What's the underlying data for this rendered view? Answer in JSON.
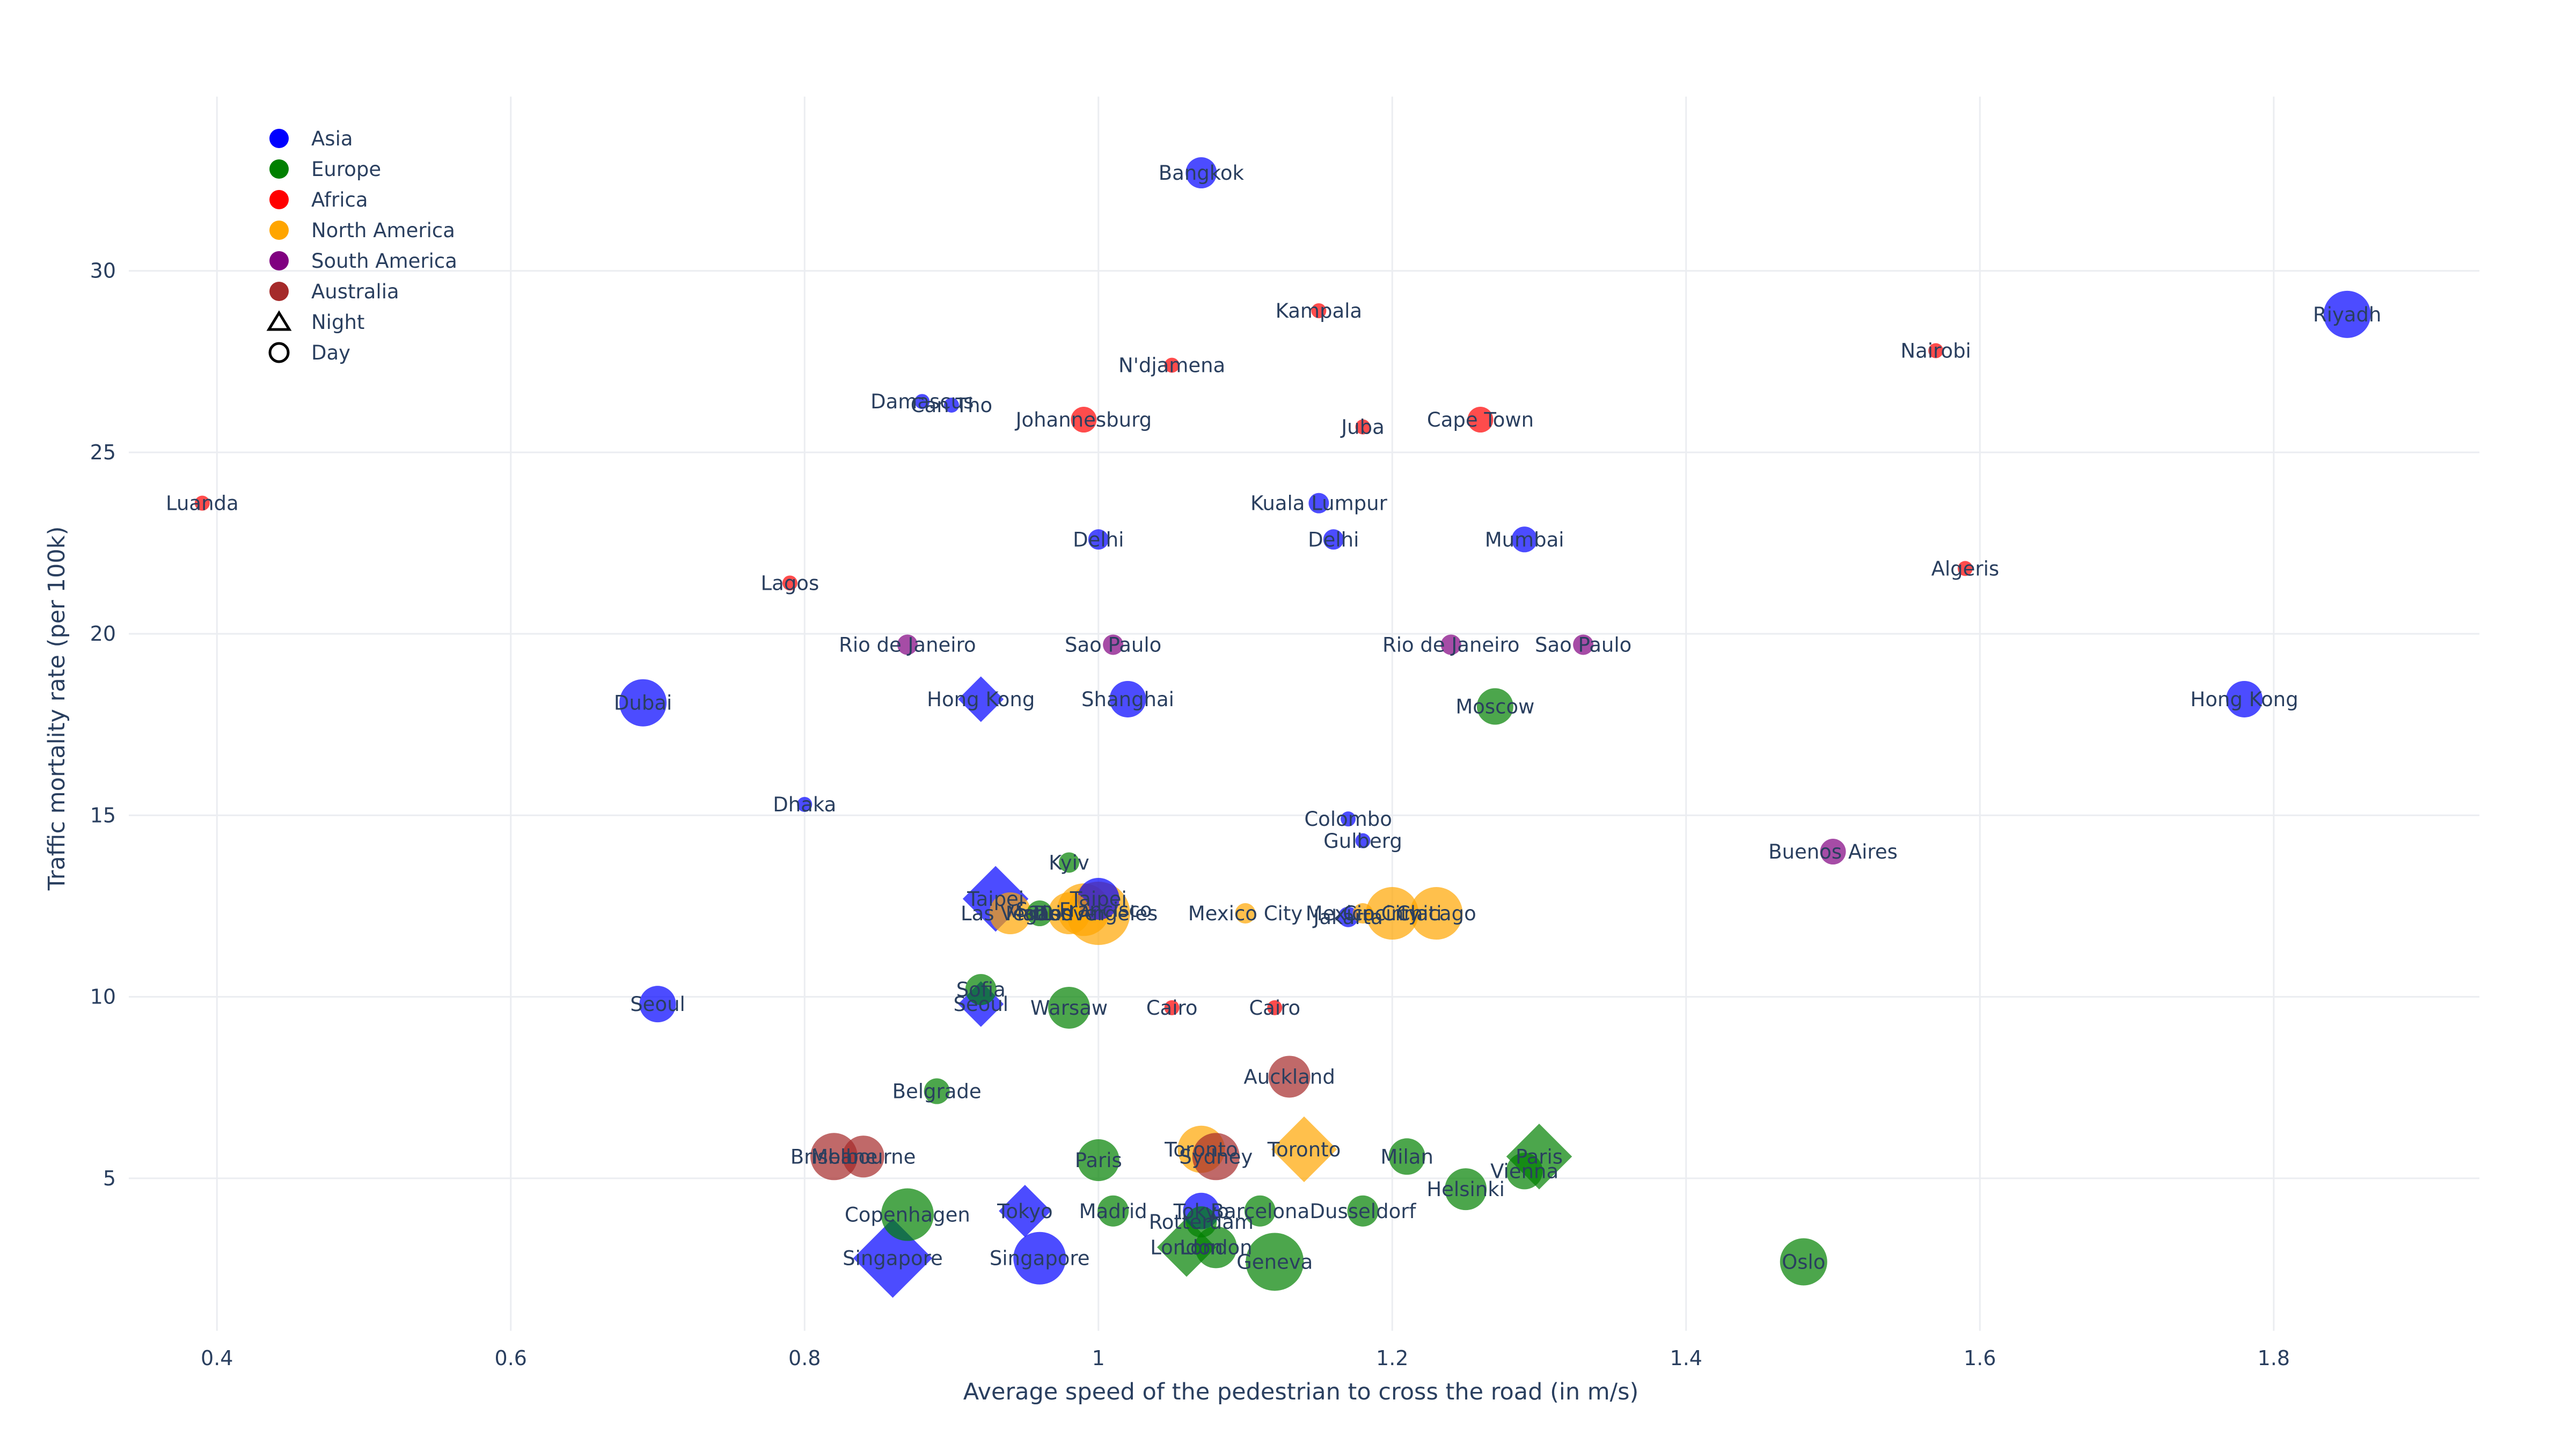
{
  "chart_data": {
    "type": "scatter",
    "title": "",
    "xlabel": "Average speed of the pedestrian to cross the road (in m/s)",
    "ylabel": "Traffic mortality rate (per 100k)",
    "xlim": [
      0.34,
      1.94
    ],
    "ylim": [
      0.8,
      34.8
    ],
    "x_ticks": [
      0.4,
      0.6,
      0.8,
      1,
      1.2,
      1.4,
      1.6,
      1.8
    ],
    "x_tick_labels": [
      "0.4",
      "0.6",
      "0.8",
      "1",
      "1.2",
      "1.4",
      "1.6",
      "1.8"
    ],
    "y_ticks": [
      5,
      10,
      15,
      20,
      25,
      30
    ],
    "y_tick_labels": [
      "5",
      "10",
      "15",
      "20",
      "25",
      "30"
    ],
    "grid": true,
    "legend_position": "top-left",
    "legend": {
      "regions": [
        {
          "name": "Asia",
          "color": "#0000ff"
        },
        {
          "name": "Europe",
          "color": "#008000"
        },
        {
          "name": "Africa",
          "color": "#ff0000"
        },
        {
          "name": "North America",
          "color": "#ffa500"
        },
        {
          "name": "South America",
          "color": "#800080"
        },
        {
          "name": "Australia",
          "color": "#a52a2a"
        }
      ],
      "times": [
        {
          "name": "Night",
          "symbol": "triangle"
        },
        {
          "name": "Day",
          "symbol": "circle"
        }
      ]
    },
    "points": [
      {
        "city": "Bangkok",
        "region": "Asia",
        "x": 1.07,
        "y": 32.7,
        "symbol": "circle",
        "size": 4
      },
      {
        "city": "Riyadh",
        "region": "Asia",
        "x": 1.85,
        "y": 28.8,
        "symbol": "circle",
        "size": 7
      },
      {
        "city": "Kampala",
        "region": "Africa",
        "x": 1.15,
        "y": 28.9,
        "symbol": "circle",
        "size": 1
      },
      {
        "city": "Nairobi",
        "region": "Africa",
        "x": 1.57,
        "y": 27.8,
        "symbol": "circle",
        "size": 1
      },
      {
        "city": "N'djamena",
        "region": "Africa",
        "x": 1.05,
        "y": 27.4,
        "symbol": "circle",
        "size": 1
      },
      {
        "city": "Damascus",
        "region": "Asia",
        "x": 0.88,
        "y": 26.4,
        "symbol": "circle",
        "size": 1
      },
      {
        "city": "Can Tho",
        "region": "Asia",
        "x": 0.9,
        "y": 26.3,
        "symbol": "circle",
        "size": 1
      },
      {
        "city": "Johannesburg",
        "region": "Africa",
        "x": 0.99,
        "y": 25.9,
        "symbol": "circle",
        "size": 3
      },
      {
        "city": "Cape Town",
        "region": "Africa",
        "x": 1.26,
        "y": 25.9,
        "symbol": "circle",
        "size": 3
      },
      {
        "city": "Juba",
        "region": "Africa",
        "x": 1.18,
        "y": 25.7,
        "symbol": "circle",
        "size": 1
      },
      {
        "city": "Luanda",
        "region": "Africa",
        "x": 0.39,
        "y": 23.6,
        "symbol": "circle",
        "size": 1
      },
      {
        "city": "Kuala Lumpur",
        "region": "Asia",
        "x": 1.15,
        "y": 23.6,
        "symbol": "circle",
        "size": 2
      },
      {
        "city": "Delhi",
        "region": "Asia",
        "x": 1.0,
        "y": 22.6,
        "symbol": "circle",
        "size": 2
      },
      {
        "city": "Delhi",
        "region": "Asia",
        "x": 1.16,
        "y": 22.6,
        "symbol": "circle",
        "size": 2
      },
      {
        "city": "Mumbai",
        "region": "Asia",
        "x": 1.29,
        "y": 22.6,
        "symbol": "circle",
        "size": 3
      },
      {
        "city": "Algeris",
        "region": "Africa",
        "x": 1.59,
        "y": 21.8,
        "symbol": "circle",
        "size": 1
      },
      {
        "city": "Lagos",
        "region": "Africa",
        "x": 0.79,
        "y": 21.4,
        "symbol": "circle",
        "size": 1
      },
      {
        "city": "Rio de Janeiro",
        "region": "South America",
        "x": 0.87,
        "y": 19.7,
        "symbol": "circle",
        "size": 2
      },
      {
        "city": "Sao Paulo",
        "region": "South America",
        "x": 1.01,
        "y": 19.7,
        "symbol": "circle",
        "size": 2
      },
      {
        "city": "Rio de Janeiro",
        "region": "South America",
        "x": 1.24,
        "y": 19.7,
        "symbol": "circle",
        "size": 2
      },
      {
        "city": "Sao Paulo",
        "region": "South America",
        "x": 1.33,
        "y": 19.7,
        "symbol": "circle",
        "size": 2
      },
      {
        "city": "Dubai",
        "region": "Asia",
        "x": 0.69,
        "y": 18.1,
        "symbol": "circle",
        "size": 7
      },
      {
        "city": "Hong Kong",
        "region": "Asia",
        "x": 0.92,
        "y": 18.2,
        "symbol": "diamond",
        "size": 5
      },
      {
        "city": "Shanghai",
        "region": "Asia",
        "x": 1.02,
        "y": 18.2,
        "symbol": "circle",
        "size": 5
      },
      {
        "city": "Moscow",
        "region": "Europe",
        "x": 1.27,
        "y": 18.0,
        "symbol": "circle",
        "size": 5
      },
      {
        "city": "Hong Kong",
        "region": "Asia",
        "x": 1.78,
        "y": 18.2,
        "symbol": "circle",
        "size": 5
      },
      {
        "city": "Dhaka",
        "region": "Asia",
        "x": 0.8,
        "y": 15.3,
        "symbol": "circle",
        "size": 1
      },
      {
        "city": "Colombo",
        "region": "Asia",
        "x": 1.17,
        "y": 14.9,
        "symbol": "circle",
        "size": 1
      },
      {
        "city": "Gulberg",
        "region": "Asia",
        "x": 1.18,
        "y": 14.3,
        "symbol": "circle",
        "size": 1
      },
      {
        "city": "Buenos Aires",
        "region": "South America",
        "x": 1.5,
        "y": 14.0,
        "symbol": "circle",
        "size": 3
      },
      {
        "city": "Kyiv",
        "region": "Europe",
        "x": 0.98,
        "y": 13.7,
        "symbol": "circle",
        "size": 2
      },
      {
        "city": "Taipei",
        "region": "Asia",
        "x": 0.93,
        "y": 12.7,
        "symbol": "diamond",
        "size": 8
      },
      {
        "city": "Taipei",
        "region": "Asia",
        "x": 1.0,
        "y": 12.7,
        "symbol": "circle",
        "size": 6
      },
      {
        "city": "Las Vegas",
        "region": "North America",
        "x": 0.94,
        "y": 12.3,
        "symbol": "circle",
        "size": 6
      },
      {
        "city": "Madrid",
        "region": "Europe",
        "x": 0.96,
        "y": 12.3,
        "symbol": "circle",
        "size": 3
      },
      {
        "city": "San Francisco",
        "region": "North America",
        "x": 0.99,
        "y": 12.4,
        "symbol": "circle",
        "size": 8
      },
      {
        "city": "Los Angeles",
        "region": "North America",
        "x": 1.0,
        "y": 12.3,
        "symbol": "circle",
        "size": 10
      },
      {
        "city": "Denver",
        "region": "North America",
        "x": 0.98,
        "y": 12.3,
        "symbol": "circle",
        "size": 6
      },
      {
        "city": "Mexico City",
        "region": "North America",
        "x": 1.1,
        "y": 12.3,
        "symbol": "circle",
        "size": 2
      },
      {
        "city": "Jakarta",
        "region": "Asia",
        "x": 1.17,
        "y": 12.2,
        "symbol": "circle",
        "size": 2
      },
      {
        "city": "Mexico City",
        "region": "North America",
        "x": 1.18,
        "y": 12.3,
        "symbol": "circle",
        "size": 2
      },
      {
        "city": "Cincinnati",
        "region": "North America",
        "x": 1.2,
        "y": 12.3,
        "symbol": "circle",
        "size": 8
      },
      {
        "city": "Chicago",
        "region": "North America",
        "x": 1.23,
        "y": 12.3,
        "symbol": "circle",
        "size": 8
      },
      {
        "city": "Sofia",
        "region": "Europe",
        "x": 0.92,
        "y": 10.2,
        "symbol": "circle",
        "size": 4
      },
      {
        "city": "Seoul",
        "region": "Asia",
        "x": 0.92,
        "y": 9.8,
        "symbol": "diamond",
        "size": 5
      },
      {
        "city": "Seoul",
        "region": "Asia",
        "x": 0.7,
        "y": 9.8,
        "symbol": "circle",
        "size": 5
      },
      {
        "city": "Warsaw",
        "region": "Europe",
        "x": 0.98,
        "y": 9.7,
        "symbol": "circle",
        "size": 6
      },
      {
        "city": "Cairo",
        "region": "Africa",
        "x": 1.05,
        "y": 9.7,
        "symbol": "circle",
        "size": 1
      },
      {
        "city": "Cairo",
        "region": "Africa",
        "x": 1.12,
        "y": 9.7,
        "symbol": "circle",
        "size": 1
      },
      {
        "city": "Auckland",
        "region": "Australia",
        "x": 1.13,
        "y": 7.8,
        "symbol": "circle",
        "size": 6
      },
      {
        "city": "Belgrade",
        "region": "Europe",
        "x": 0.89,
        "y": 7.4,
        "symbol": "circle",
        "size": 3
      },
      {
        "city": "Brisbane",
        "region": "Australia",
        "x": 0.82,
        "y": 5.6,
        "symbol": "circle",
        "size": 7
      },
      {
        "city": "Melbourne",
        "region": "Australia",
        "x": 0.84,
        "y": 5.6,
        "symbol": "circle",
        "size": 6
      },
      {
        "city": "Paris",
        "region": "Europe",
        "x": 1.0,
        "y": 5.5,
        "symbol": "circle",
        "size": 6
      },
      {
        "city": "Toronto",
        "region": "North America",
        "x": 1.07,
        "y": 5.8,
        "symbol": "circle",
        "size": 7
      },
      {
        "city": "Sydney",
        "region": "Australia",
        "x": 1.08,
        "y": 5.6,
        "symbol": "circle",
        "size": 7
      },
      {
        "city": "Toronto",
        "region": "North America",
        "x": 1.14,
        "y": 5.8,
        "symbol": "diamond",
        "size": 8
      },
      {
        "city": "Milan",
        "region": "Europe",
        "x": 1.21,
        "y": 5.6,
        "symbol": "circle",
        "size": 5
      },
      {
        "city": "Paris",
        "region": "Europe",
        "x": 1.3,
        "y": 5.6,
        "symbol": "diamond",
        "size": 8
      },
      {
        "city": "Vienna",
        "region": "Europe",
        "x": 1.29,
        "y": 5.2,
        "symbol": "circle",
        "size": 5
      },
      {
        "city": "Helsinki",
        "region": "Europe",
        "x": 1.25,
        "y": 4.7,
        "symbol": "circle",
        "size": 6
      },
      {
        "city": "Copenhagen",
        "region": "Europe",
        "x": 0.87,
        "y": 4.0,
        "symbol": "circle",
        "size": 8
      },
      {
        "city": "Tokyo",
        "region": "Asia",
        "x": 0.95,
        "y": 4.1,
        "symbol": "diamond",
        "size": 6
      },
      {
        "city": "Madrid",
        "region": "Europe",
        "x": 1.01,
        "y": 4.1,
        "symbol": "circle",
        "size": 4
      },
      {
        "city": "Tokyo",
        "region": "Asia",
        "x": 1.07,
        "y": 4.1,
        "symbol": "circle",
        "size": 5
      },
      {
        "city": "Barcelona",
        "region": "Europe",
        "x": 1.11,
        "y": 4.1,
        "symbol": "circle",
        "size": 4
      },
      {
        "city": "Dusseldorf",
        "region": "Europe",
        "x": 1.18,
        "y": 4.1,
        "symbol": "circle",
        "size": 4
      },
      {
        "city": "Rotterdam",
        "region": "Europe",
        "x": 1.07,
        "y": 3.8,
        "symbol": "circle",
        "size": 4
      },
      {
        "city": "London",
        "region": "Europe",
        "x": 1.06,
        "y": 3.1,
        "symbol": "diamond",
        "size": 7
      },
      {
        "city": "London",
        "region": "Europe",
        "x": 1.08,
        "y": 3.1,
        "symbol": "circle",
        "size": 6
      },
      {
        "city": "Singapore",
        "region": "Asia",
        "x": 0.86,
        "y": 2.8,
        "symbol": "diamond",
        "size": 10
      },
      {
        "city": "Singapore",
        "region": "Asia",
        "x": 0.96,
        "y": 2.8,
        "symbol": "circle",
        "size": 8
      },
      {
        "city": "Geneva",
        "region": "Europe",
        "x": 1.12,
        "y": 2.7,
        "symbol": "circle",
        "size": 9
      },
      {
        "city": "Oslo",
        "region": "Europe",
        "x": 1.48,
        "y": 2.7,
        "symbol": "circle",
        "size": 7
      }
    ]
  }
}
